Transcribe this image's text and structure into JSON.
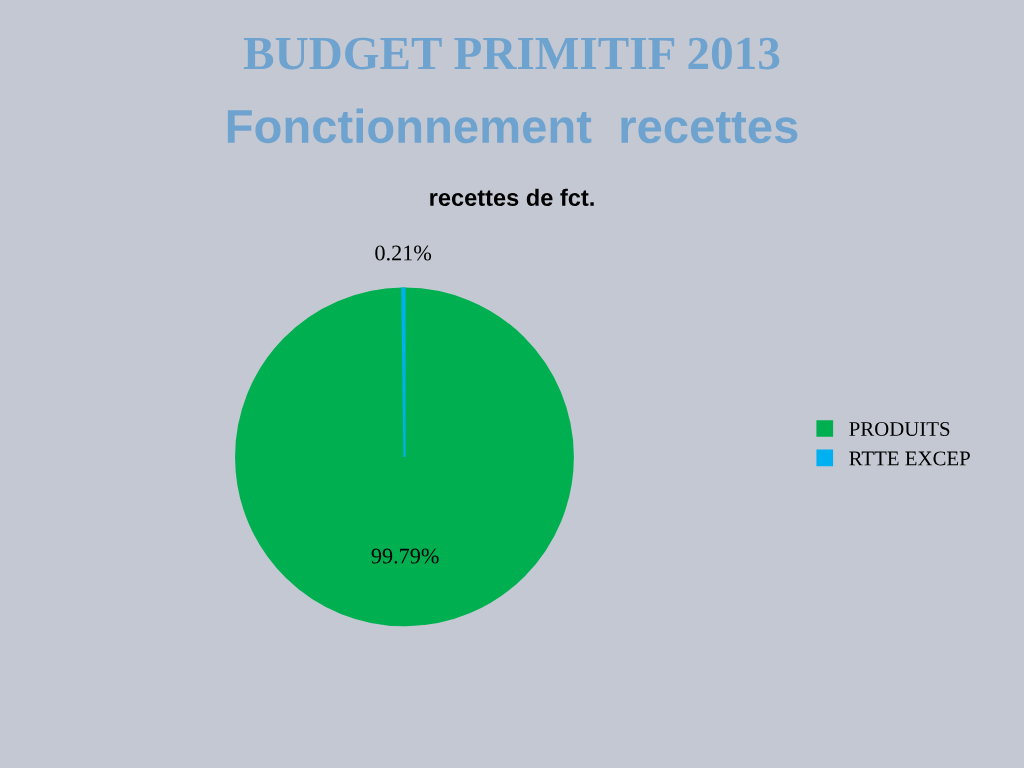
{
  "chart_data": {
    "type": "pie",
    "title": "BUDGET PRIMITIF 2013",
    "subtitle": "Fonctionnement  recettes",
    "annotations": [
      "recettes de fct."
    ],
    "categories": [
      "PRODUITS",
      "RTTE EXCEP"
    ],
    "values": [
      99.79,
      0.21
    ],
    "colors": [
      "#00b050",
      "#00b0f0"
    ],
    "value_labels": [
      "99.79%",
      "0.21%"
    ],
    "legend": "right"
  }
}
